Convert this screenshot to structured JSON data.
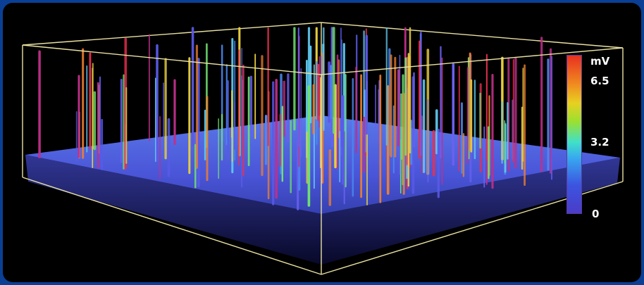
{
  "chart_data": {
    "type": "3d-spike-surface",
    "title": "",
    "colorbar": {
      "unit": "mV",
      "ticks": [
        {
          "label": "6.5",
          "value": 6.5
        },
        {
          "label": "3.2",
          "value": 3.2
        },
        {
          "label": "0",
          "value": 0
        }
      ],
      "range": [
        0,
        8
      ],
      "colors": [
        "#4a3cc8",
        "#38a8f0",
        "#9ae030",
        "#e8d020",
        "#e83020"
      ]
    }
  },
  "colors": {
    "frame_border": "#0a3f95",
    "background": "#000000",
    "box_lines": "#e8e0a0",
    "surface": "#4a55d8"
  }
}
